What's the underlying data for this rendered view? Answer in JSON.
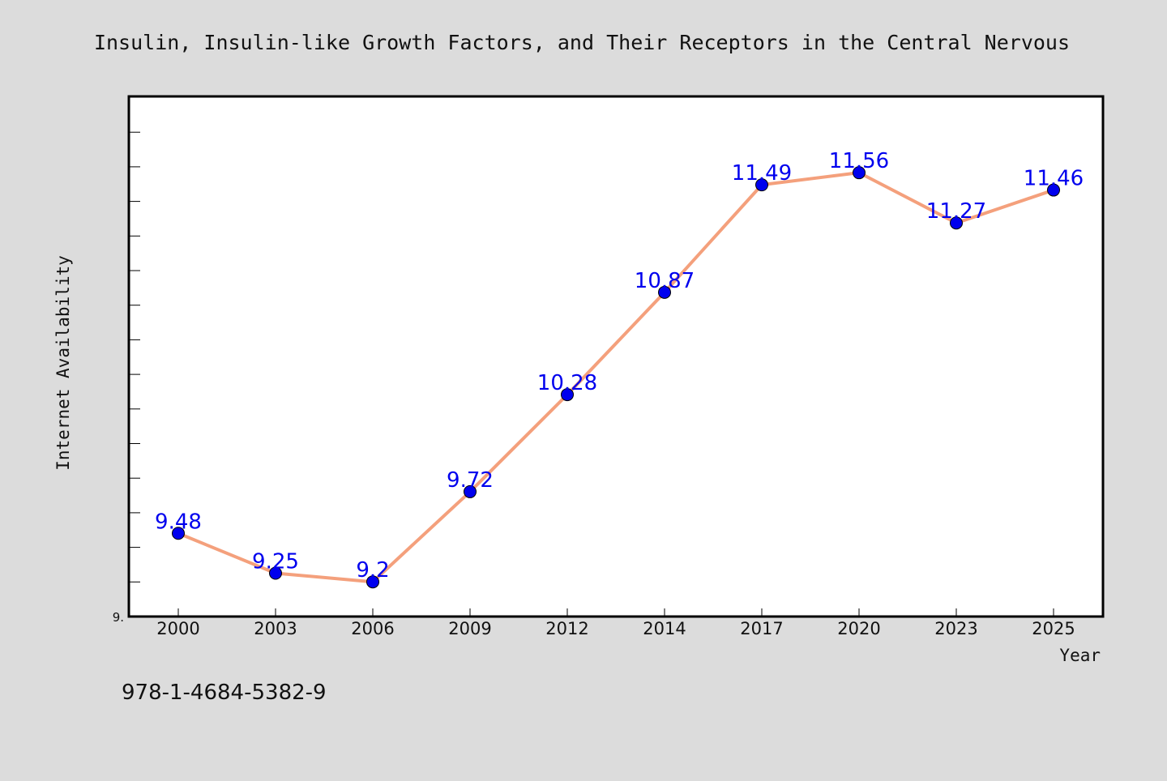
{
  "chart_data": {
    "type": "line",
    "title": "Insulin, Insulin-like Growth Factors, and Their Receptors in the Central Nervous",
    "xlabel": "Year",
    "ylabel": "Internet Availability",
    "categories": [
      "2000",
      "2003",
      "2006",
      "2009",
      "2012",
      "2014",
      "2017",
      "2020",
      "2023",
      "2025"
    ],
    "series": [
      {
        "values": [
          9.48,
          9.25,
          9.2,
          9.72,
          10.28,
          10.87,
          11.49,
          11.56,
          11.27,
          11.46
        ],
        "labels": [
          "9.48",
          "9.25",
          "9.2",
          "9.72",
          "10.28",
          "10.87",
          "11.49",
          "11.56",
          "11.27",
          "11.46"
        ]
      }
    ],
    "ylim": [
      9.0,
      12.0
    ],
    "y_tick_labels": [
      "9."
    ],
    "grid": false,
    "colors": {
      "line": "#f4a07c",
      "marker": "#0000ee",
      "label": "#0000ee"
    }
  },
  "footer": {
    "isbn": "978-1-4684-5382-9"
  }
}
